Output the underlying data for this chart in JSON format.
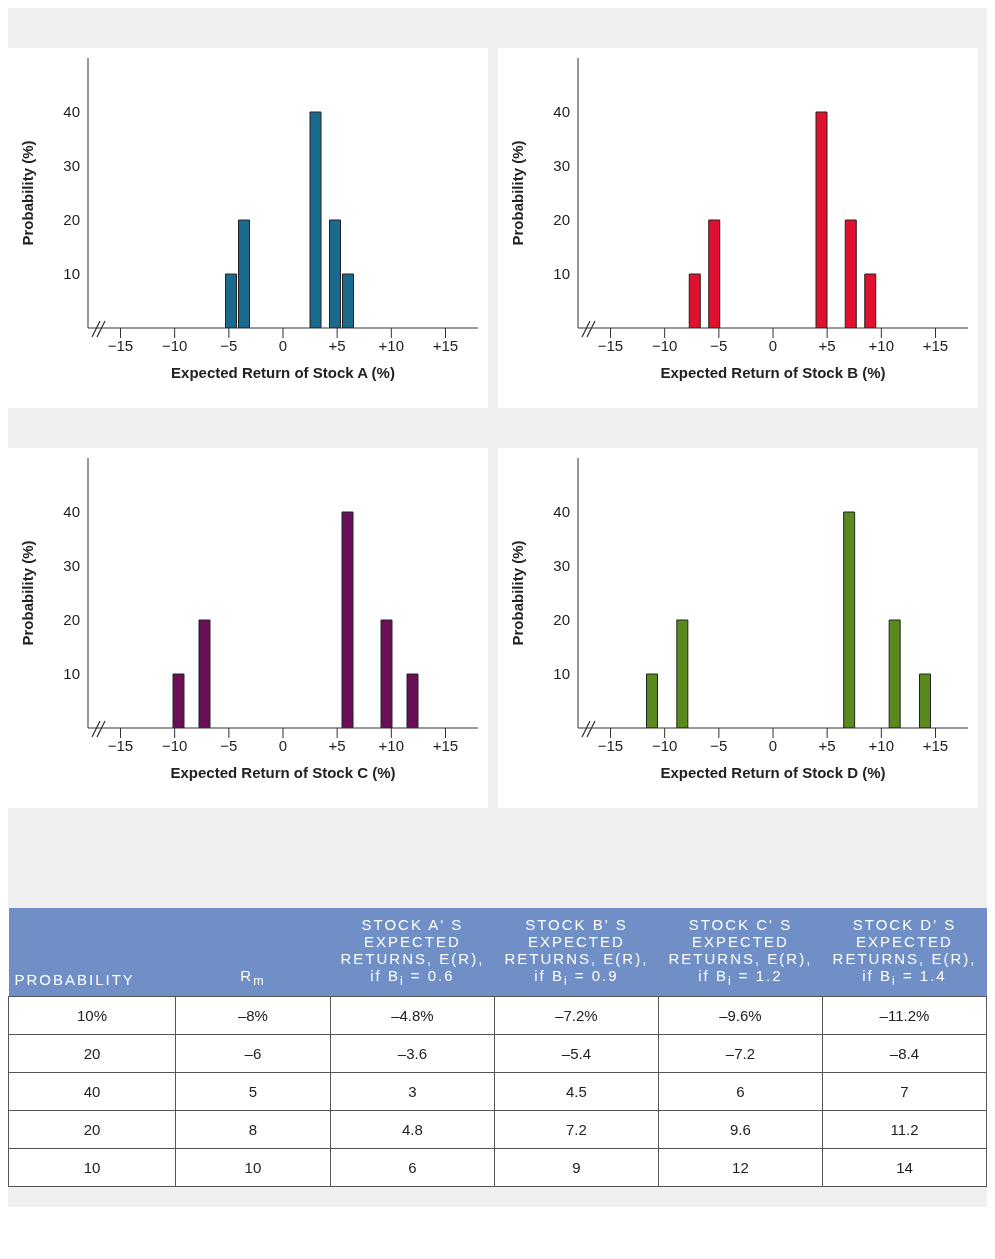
{
  "chart_data": [
    {
      "type": "bar",
      "xlabel": "Expected Return of Stock A (%)",
      "ylabel": "Probability (%)",
      "x": [
        -4.8,
        -3.6,
        3,
        4.8,
        6
      ],
      "values": [
        10,
        20,
        40,
        20,
        10
      ],
      "color": "#1a6a8e",
      "xlim": [
        -18,
        18
      ],
      "xticks": [
        {
          "value": -15,
          "label": "−15"
        },
        {
          "value": -10,
          "label": "−10"
        },
        {
          "value": -5,
          "label": "−5"
        },
        {
          "value": 0,
          "label": "0"
        },
        {
          "value": 5,
          "label": "+5"
        },
        {
          "value": 10,
          "label": "+10"
        },
        {
          "value": 15,
          "label": "+15"
        }
      ],
      "ylim": [
        0,
        50
      ],
      "yticks": [
        10,
        20,
        30,
        40
      ]
    },
    {
      "type": "bar",
      "xlabel": "Expected Return of Stock B (%)",
      "ylabel": "Probability (%)",
      "x": [
        -7.2,
        -5.4,
        4.5,
        7.2,
        9
      ],
      "values": [
        10,
        20,
        40,
        20,
        10
      ],
      "color": "#e0102f",
      "xlim": [
        -18,
        18
      ],
      "xticks": [
        {
          "value": -15,
          "label": "−15"
        },
        {
          "value": -10,
          "label": "−10"
        },
        {
          "value": -5,
          "label": "−5"
        },
        {
          "value": 0,
          "label": "0"
        },
        {
          "value": 5,
          "label": "+5"
        },
        {
          "value": 10,
          "label": "+10"
        },
        {
          "value": 15,
          "label": "+15"
        }
      ],
      "ylim": [
        0,
        50
      ],
      "yticks": [
        10,
        20,
        30,
        40
      ]
    },
    {
      "type": "bar",
      "xlabel": "Expected Return of Stock C (%)",
      "ylabel": "Probability (%)",
      "x": [
        -9.6,
        -7.2,
        6,
        9.6,
        12
      ],
      "values": [
        10,
        20,
        40,
        20,
        10
      ],
      "color": "#6a0f5a",
      "xlim": [
        -18,
        18
      ],
      "xticks": [
        {
          "value": -15,
          "label": "−15"
        },
        {
          "value": -10,
          "label": "−10"
        },
        {
          "value": -5,
          "label": "−5"
        },
        {
          "value": 0,
          "label": "0"
        },
        {
          "value": 5,
          "label": "+5"
        },
        {
          "value": 10,
          "label": "+10"
        },
        {
          "value": 15,
          "label": "+15"
        }
      ],
      "ylim": [
        0,
        50
      ],
      "yticks": [
        10,
        20,
        30,
        40
      ]
    },
    {
      "type": "bar",
      "xlabel": "Expected Return of Stock D (%)",
      "ylabel": "Probability (%)",
      "x": [
        -11.2,
        -8.4,
        7,
        11.2,
        14
      ],
      "values": [
        10,
        20,
        40,
        20,
        10
      ],
      "color": "#5a8a1e",
      "xlim": [
        -18,
        18
      ],
      "xticks": [
        {
          "value": -15,
          "label": "−15"
        },
        {
          "value": -10,
          "label": "−10"
        },
        {
          "value": -5,
          "label": "−5"
        },
        {
          "value": 0,
          "label": "0"
        },
        {
          "value": 5,
          "label": "+5"
        },
        {
          "value": 10,
          "label": "+10"
        },
        {
          "value": 15,
          "label": "+15"
        }
      ],
      "ylim": [
        0,
        50
      ],
      "yticks": [
        10,
        20,
        30,
        40
      ]
    },
    {
      "type": "other",
      "categories": [
        "PROBABILITY",
        "R$_{m}$",
        "STOCK A' S EXPECTED RETURNS, E(R), if B$_{i}$ = 0.6",
        "STOCK B' S EXPECTED RETURNS, E(R), if B$_{i}$ = 0.9",
        "STOCK C' S EXPECTED RETURNS, E(R), if B$_{i}$ = 1.2",
        "STOCK D' S EXPECTED RETURNS, E(R), if B$_{i}$ = 1.4"
      ],
      "annotations": [
        "10%",
        "–8%",
        "–4.8%",
        "–7.2%",
        "–9.6%",
        "–11.2%",
        "20",
        "–6",
        "–3.6",
        "–5.4",
        "–7.2",
        "–8.4",
        "40",
        "5",
        "3",
        "4.5",
        "6",
        "7",
        "20",
        "8",
        "4.8",
        "7.2",
        "9.6",
        "11.2",
        "10",
        "10",
        "6",
        "9",
        "12",
        "14"
      ]
    }
  ]
}
